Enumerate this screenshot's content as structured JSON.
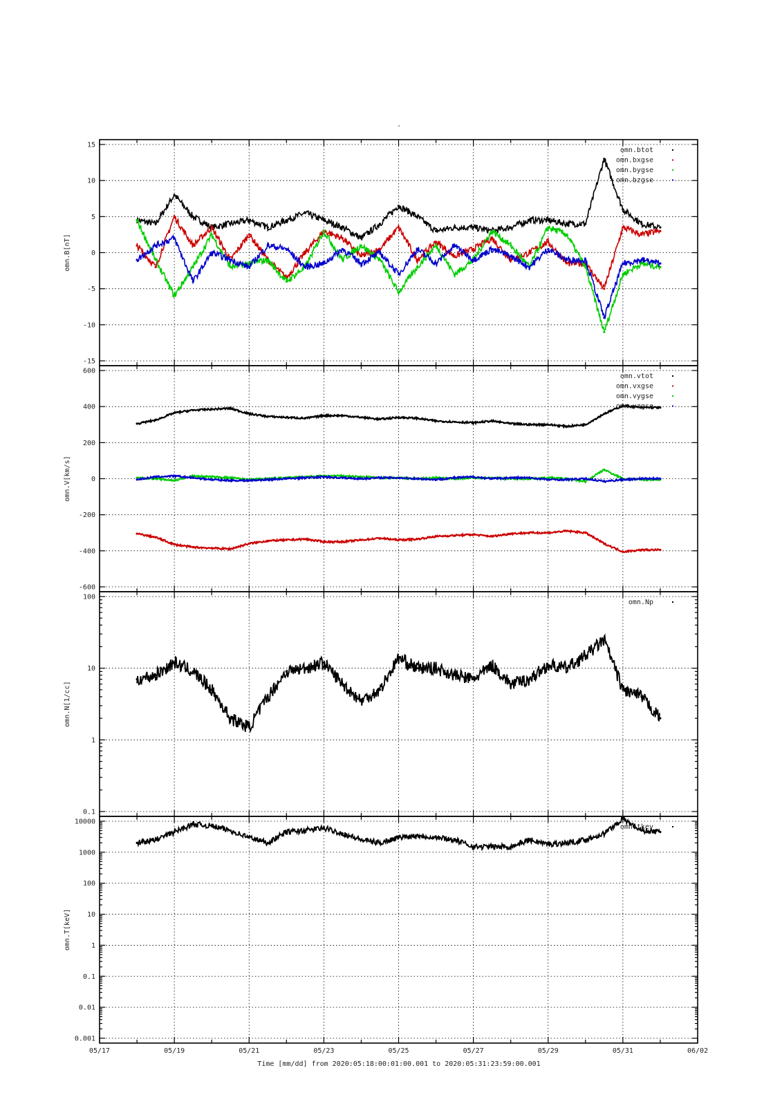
{
  "figure": {
    "title": "-",
    "xlabel": "Time [mm/dd]  from 2020:05:18:00:01:00.001  to  2020:05:31:23:59:00.001"
  },
  "chart_data": [
    {
      "type": "line",
      "ylabel": "omn.B[nT]",
      "yscale": "linear",
      "ylim": [
        -15,
        15
      ],
      "yticks": [
        -15,
        -10,
        -5,
        0,
        5,
        10,
        15
      ],
      "ytick_labels": [
        "-15",
        "-10",
        "-5",
        "0",
        "5",
        "10",
        "15"
      ],
      "xlim": [
        "05/17",
        "06/02"
      ],
      "x": [
        "05/18 00:00",
        "05/18 12:00",
        "05/19 00:00",
        "05/19 12:00",
        "05/20 00:00",
        "05/20 12:00",
        "05/21 00:00",
        "05/21 12:00",
        "05/22 00:00",
        "05/22 12:00",
        "05/23 00:00",
        "05/23 12:00",
        "05/24 00:00",
        "05/24 12:00",
        "05/25 00:00",
        "05/25 12:00",
        "05/26 00:00",
        "05/26 12:00",
        "05/27 00:00",
        "05/27 12:00",
        "05/28 00:00",
        "05/28 12:00",
        "05/29 00:00",
        "05/29 12:00",
        "05/30 00:00",
        "05/30 12:00",
        "05/31 00:00",
        "05/31 12:00",
        "05/31 23:59"
      ],
      "grid": true,
      "legend_position": "top-right",
      "series": [
        {
          "name": "omn.btot",
          "color": "#000000",
          "values": [
            4.5,
            4.0,
            8.0,
            5.0,
            3.5,
            4.0,
            4.5,
            3.5,
            4.5,
            5.5,
            4.5,
            3.5,
            2.0,
            4.0,
            6.5,
            5.0,
            3.0,
            3.5,
            3.5,
            3.0,
            3.5,
            4.5,
            4.5,
            4.0,
            4.0,
            13.0,
            6.0,
            4.0,
            3.5
          ]
        },
        {
          "name": "omn.bxgse",
          "color": "#cc0000",
          "values": [
            1.0,
            -2.0,
            5.0,
            1.0,
            3.5,
            -1.0,
            2.5,
            -1.0,
            -3.5,
            0.0,
            3.0,
            2.0,
            -0.5,
            0.5,
            3.5,
            -1.0,
            1.5,
            -0.5,
            0.5,
            2.0,
            -1.0,
            0.0,
            1.5,
            -1.5,
            -1.5,
            -5.0,
            3.5,
            2.5,
            3.0
          ]
        },
        {
          "name": "omn.bygse",
          "color": "#00cc00",
          "values": [
            4.5,
            -1.0,
            -6.0,
            -2.0,
            2.5,
            -2.0,
            -1.5,
            -1.0,
            -4.0,
            -2.0,
            3.0,
            -1.0,
            1.0,
            -1.0,
            -5.5,
            -2.0,
            1.0,
            -3.0,
            -1.0,
            3.0,
            1.0,
            -2.0,
            3.5,
            2.5,
            -2.0,
            -11.0,
            -3.0,
            -1.5,
            -2.0
          ]
        },
        {
          "name": "omn.bzgse",
          "color": "#0000cc",
          "values": [
            -1.0,
            1.0,
            2.0,
            -4.0,
            0.0,
            -1.0,
            -2.0,
            1.0,
            0.5,
            -2.0,
            -1.5,
            0.5,
            -1.5,
            0.0,
            -3.0,
            0.5,
            -1.5,
            1.0,
            -1.0,
            0.5,
            -0.5,
            -2.0,
            0.5,
            -1.0,
            -1.0,
            -9.0,
            -1.5,
            -1.0,
            -1.5
          ]
        }
      ]
    },
    {
      "type": "line",
      "ylabel": "omn.V[km/s]",
      "yscale": "linear",
      "ylim": [
        -600,
        600
      ],
      "yticks": [
        -600,
        -400,
        -200,
        0,
        200,
        400,
        600
      ],
      "ytick_labels": [
        "-600",
        "-400",
        "-200",
        "0",
        "200",
        "400",
        "600"
      ],
      "xlim": [
        "05/17",
        "06/02"
      ],
      "x": [
        "05/18 00:00",
        "05/18 12:00",
        "05/19 00:00",
        "05/19 12:00",
        "05/20 00:00",
        "05/20 12:00",
        "05/21 00:00",
        "05/21 12:00",
        "05/22 00:00",
        "05/22 12:00",
        "05/23 00:00",
        "05/23 12:00",
        "05/24 00:00",
        "05/24 12:00",
        "05/25 00:00",
        "05/25 12:00",
        "05/26 00:00",
        "05/26 12:00",
        "05/27 00:00",
        "05/27 12:00",
        "05/28 00:00",
        "05/28 12:00",
        "05/29 00:00",
        "05/29 12:00",
        "05/30 00:00",
        "05/30 12:00",
        "05/31 00:00",
        "05/31 12:00",
        "05/31 23:59"
      ],
      "grid": true,
      "legend_position": "top-right",
      "series": [
        {
          "name": "omn.vtot",
          "color": "#000000",
          "values": [
            305,
            325,
            365,
            380,
            385,
            390,
            360,
            345,
            340,
            335,
            350,
            350,
            340,
            330,
            340,
            335,
            320,
            315,
            310,
            320,
            305,
            300,
            300,
            290,
            300,
            360,
            405,
            395,
            395
          ]
        },
        {
          "name": "omn.vxgse",
          "color": "#cc0000",
          "values": [
            -305,
            -325,
            -365,
            -380,
            -385,
            -390,
            -360,
            -345,
            -340,
            -335,
            -350,
            -350,
            -340,
            -330,
            -340,
            -335,
            -320,
            -315,
            -310,
            -320,
            -305,
            -300,
            -300,
            -290,
            -300,
            -360,
            -405,
            -395,
            -395
          ]
        },
        {
          "name": "omn.vygse",
          "color": "#00cc00",
          "values": [
            5,
            0,
            -10,
            15,
            10,
            5,
            -5,
            0,
            5,
            10,
            15,
            15,
            10,
            5,
            5,
            0,
            5,
            0,
            5,
            5,
            0,
            0,
            5,
            0,
            -15,
            50,
            0,
            -5,
            -5
          ]
        },
        {
          "name": "omn.vzgse",
          "color": "#0000cc",
          "values": [
            -5,
            10,
            15,
            5,
            -5,
            -10,
            -10,
            -5,
            0,
            5,
            10,
            5,
            0,
            5,
            5,
            0,
            -5,
            5,
            10,
            0,
            5,
            5,
            -5,
            -5,
            0,
            -15,
            -5,
            0,
            0
          ]
        }
      ]
    },
    {
      "type": "scatter",
      "ylabel": "omn.N[1/cc]",
      "yscale": "log",
      "ylim": [
        0.1,
        100
      ],
      "yticks": [
        0.1,
        1,
        10,
        100
      ],
      "ytick_labels": [
        "0.1",
        "1",
        "10",
        "100"
      ],
      "xlim": [
        "05/17",
        "06/02"
      ],
      "x": [
        "05/18 00:00",
        "05/18 12:00",
        "05/19 00:00",
        "05/19 12:00",
        "05/20 00:00",
        "05/20 12:00",
        "05/21 00:00",
        "05/21 12:00",
        "05/22 00:00",
        "05/22 12:00",
        "05/23 00:00",
        "05/23 12:00",
        "05/24 00:00",
        "05/24 12:00",
        "05/25 00:00",
        "05/25 12:00",
        "05/26 00:00",
        "05/26 12:00",
        "05/27 00:00",
        "05/27 12:00",
        "05/28 00:00",
        "05/28 12:00",
        "05/29 00:00",
        "05/29 12:00",
        "05/30 00:00",
        "05/30 12:00",
        "05/31 00:00",
        "05/31 12:00",
        "05/31 23:59"
      ],
      "grid": true,
      "legend_position": "top-right",
      "series": [
        {
          "name": "omn.Np",
          "color": "#000000",
          "values": [
            7,
            8,
            12,
            9,
            5,
            2,
            1.5,
            4,
            9,
            10,
            12,
            6,
            3.5,
            5,
            14,
            10,
            10,
            8,
            7,
            11,
            6,
            7,
            11,
            10,
            15,
            25,
            5,
            4,
            2
          ]
        }
      ]
    },
    {
      "type": "scatter",
      "ylabel": "omn.T[keV]",
      "yscale": "log",
      "ylim": [
        0.001,
        10000
      ],
      "yticks": [
        0.001,
        0.01,
        0.1,
        1,
        10,
        100,
        1000,
        10000
      ],
      "ytick_labels": [
        "0.001",
        "0.01",
        "0.1",
        "1",
        "10",
        "100",
        "1000",
        "10000"
      ],
      "xlim": [
        "05/17",
        "06/02"
      ],
      "x": [
        "05/18 00:00",
        "05/18 12:00",
        "05/19 00:00",
        "05/19 12:00",
        "05/20 00:00",
        "05/20 12:00",
        "05/21 00:00",
        "05/21 12:00",
        "05/22 00:00",
        "05/22 12:00",
        "05/23 00:00",
        "05/23 12:00",
        "05/24 00:00",
        "05/24 12:00",
        "05/25 00:00",
        "05/25 12:00",
        "05/26 00:00",
        "05/26 12:00",
        "05/27 00:00",
        "05/27 12:00",
        "05/28 00:00",
        "05/28 12:00",
        "05/29 00:00",
        "05/29 12:00",
        "05/30 00:00",
        "05/30 12:00",
        "05/31 00:00",
        "05/31 12:00",
        "05/31 23:59"
      ],
      "grid": true,
      "legend_position": "top-right",
      "series": [
        {
          "name": "omn.tkev",
          "color": "#000000",
          "values": [
            2000,
            2500,
            4500,
            8000,
            7000,
            5000,
            3000,
            2000,
            4500,
            5000,
            6000,
            4000,
            2500,
            2000,
            3000,
            3500,
            3000,
            2500,
            1500,
            1500,
            1500,
            2500,
            1800,
            2000,
            2500,
            4000,
            12000,
            5000,
            4500
          ]
        }
      ]
    }
  ],
  "x_axis": {
    "tick_labels": [
      "05/17",
      "05/19",
      "05/21",
      "05/23",
      "05/25",
      "05/27",
      "05/29",
      "05/31",
      "06/02"
    ]
  }
}
